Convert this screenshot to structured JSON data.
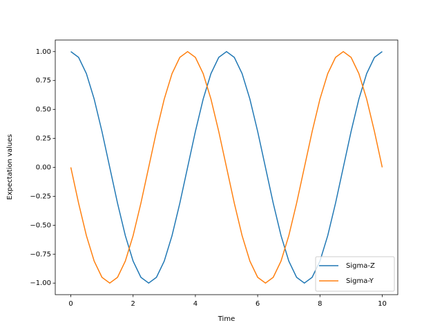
{
  "chart_data": {
    "type": "line",
    "x_label": "Time",
    "y_label": "Expectation values",
    "x": [
      0,
      0.25,
      0.5,
      0.75,
      1,
      1.25,
      1.5,
      1.75,
      2,
      2.25,
      2.5,
      2.75,
      3,
      3.25,
      3.5,
      3.75,
      4,
      4.25,
      4.5,
      4.75,
      5,
      5.25,
      5.5,
      5.75,
      6,
      6.25,
      6.5,
      6.75,
      7,
      7.25,
      7.5,
      7.75,
      8,
      8.25,
      8.5,
      8.75,
      9,
      9.25,
      9.5,
      9.75,
      10
    ],
    "series": [
      {
        "name": "Sigma-Z",
        "color": "#1f77b4",
        "values": [
          1,
          0.95,
          0.81,
          0.59,
          0.31,
          0,
          -0.31,
          -0.59,
          -0.81,
          -0.95,
          -1,
          -0.95,
          -0.81,
          -0.59,
          -0.31,
          0,
          0.31,
          0.59,
          0.81,
          0.95,
          1,
          0.95,
          0.81,
          0.59,
          0.31,
          0,
          -0.31,
          -0.59,
          -0.81,
          -0.95,
          -1,
          -0.95,
          -0.81,
          -0.59,
          -0.31,
          0,
          0.31,
          0.59,
          0.81,
          0.95,
          1
        ]
      },
      {
        "name": "Sigma-Y",
        "color": "#ff7f0e",
        "values": [
          0,
          -0.31,
          -0.59,
          -0.81,
          -0.95,
          -1,
          -0.95,
          -0.81,
          -0.59,
          -0.31,
          0,
          0.31,
          0.59,
          0.81,
          0.95,
          1,
          0.95,
          0.81,
          0.59,
          0.31,
          0,
          -0.31,
          -0.59,
          -0.81,
          -0.95,
          -1,
          -0.95,
          -0.81,
          -0.59,
          -0.31,
          0,
          0.31,
          0.59,
          0.81,
          0.95,
          1,
          0.95,
          0.81,
          0.59,
          0.31,
          0
        ]
      }
    ],
    "xlim": [
      -0.5,
      10.5
    ],
    "ylim": [
      -1.1,
      1.1
    ],
    "xticks": [
      0,
      2,
      4,
      6,
      8,
      10
    ],
    "yticks": [
      {
        "value": -1,
        "label": "−1.00"
      },
      {
        "value": -0.75,
        "label": "−0.75"
      },
      {
        "value": -0.5,
        "label": "−0.50"
      },
      {
        "value": -0.25,
        "label": "−0.25"
      },
      {
        "value": 0,
        "label": "0.00"
      },
      {
        "value": 0.25,
        "label": "0.25"
      },
      {
        "value": 0.5,
        "label": "0.50"
      },
      {
        "value": 0.75,
        "label": "0.75"
      },
      {
        "value": 1,
        "label": "1.00"
      }
    ],
    "legend": "lower right",
    "grid": false
  }
}
